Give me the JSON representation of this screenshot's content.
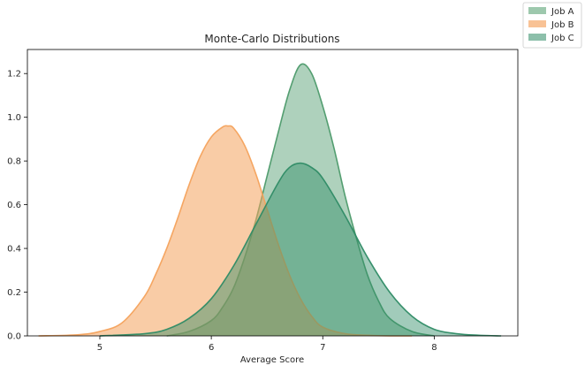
{
  "chart_data": {
    "type": "area",
    "title": "Monte-Carlo Distributions",
    "xlabel": "Average Score",
    "ylabel": "",
    "xlim": [
      4.35,
      8.75
    ],
    "ylim": [
      0,
      1.31
    ],
    "x_ticks": [
      5,
      6,
      7,
      8
    ],
    "y_ticks": [
      0.0,
      0.2,
      0.4,
      0.6,
      0.8,
      1.0,
      1.2
    ],
    "grid": false,
    "legend_position": "upper-right outside",
    "series": [
      {
        "name": "Job A",
        "color": "#4c9a6a",
        "fill_opacity": 0.45,
        "peak_x": 6.8,
        "peak_y": 1.24,
        "x": [
          5.6,
          5.8,
          6.0,
          6.1,
          6.2,
          6.3,
          6.4,
          6.5,
          6.6,
          6.7,
          6.8,
          6.9,
          7.0,
          7.1,
          7.2,
          7.3,
          7.4,
          7.5,
          7.6,
          7.8,
          8.0
        ],
        "y": [
          0.0,
          0.02,
          0.07,
          0.13,
          0.22,
          0.36,
          0.53,
          0.73,
          0.93,
          1.12,
          1.24,
          1.2,
          1.05,
          0.86,
          0.64,
          0.45,
          0.28,
          0.16,
          0.08,
          0.02,
          0.0
        ]
      },
      {
        "name": "Job B",
        "color": "#f4a25c",
        "fill_opacity": 0.55,
        "peak_x": 6.15,
        "peak_y": 0.96,
        "x": [
          4.45,
          4.8,
          5.0,
          5.2,
          5.4,
          5.5,
          5.6,
          5.7,
          5.8,
          5.9,
          6.0,
          6.1,
          6.15,
          6.2,
          6.3,
          6.4,
          6.5,
          6.6,
          6.7,
          6.8,
          6.9,
          7.0,
          7.2,
          7.4,
          7.6,
          7.8
        ],
        "y": [
          0.0,
          0.005,
          0.02,
          0.06,
          0.18,
          0.28,
          0.4,
          0.54,
          0.69,
          0.82,
          0.91,
          0.955,
          0.96,
          0.95,
          0.87,
          0.74,
          0.58,
          0.42,
          0.28,
          0.17,
          0.09,
          0.04,
          0.01,
          0.003,
          0.0,
          0.0
        ]
      },
      {
        "name": "Job C",
        "color": "#2e8b65",
        "fill_opacity": 0.45,
        "peak_x": 6.8,
        "peak_y": 0.79,
        "x": [
          5.0,
          5.4,
          5.6,
          5.8,
          6.0,
          6.2,
          6.4,
          6.6,
          6.7,
          6.8,
          6.9,
          7.0,
          7.2,
          7.4,
          7.6,
          7.8,
          8.0,
          8.2,
          8.4,
          8.6
        ],
        "y": [
          0.0,
          0.01,
          0.03,
          0.08,
          0.17,
          0.32,
          0.51,
          0.7,
          0.77,
          0.79,
          0.77,
          0.72,
          0.55,
          0.36,
          0.2,
          0.09,
          0.03,
          0.01,
          0.003,
          0.0
        ]
      }
    ]
  }
}
